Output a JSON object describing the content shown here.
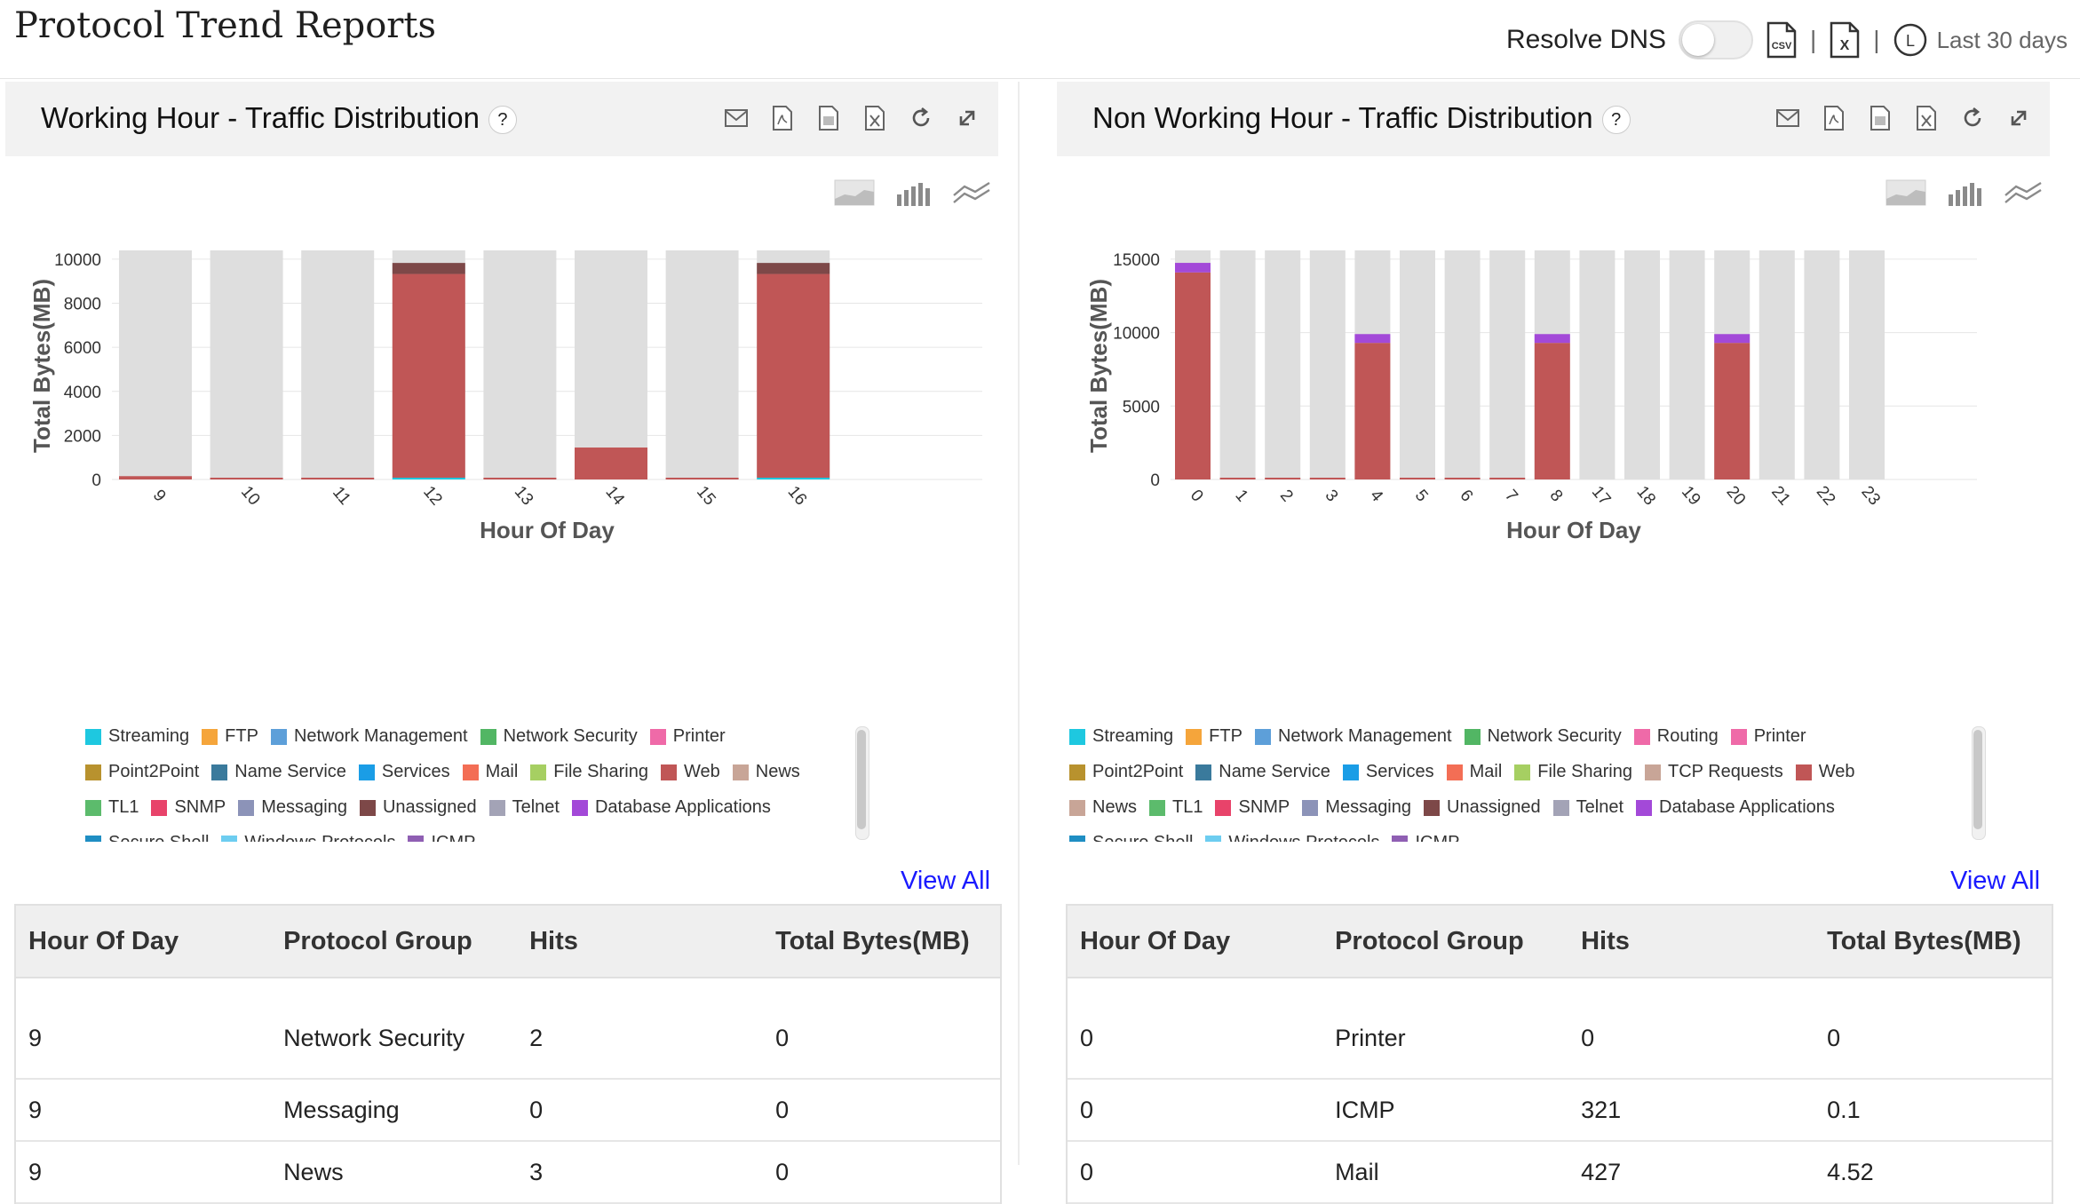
{
  "page": {
    "title": "Protocol Trend Reports",
    "resolve_dns_label": "Resolve DNS",
    "resolve_dns_on": false,
    "csv_icon_text": "CSV",
    "xls_icon_text": "X",
    "separator": "|",
    "period_icon_text": "L",
    "period": "Last 30 days"
  },
  "colors": {
    "Streaming": "#1ec8e0",
    "FTP": "#f5a53b",
    "Network Management": "#5d9fd9",
    "Network Security": "#52b664",
    "Printer": "#ef6aa8",
    "Point2Point": "#b8922e",
    "Name Service": "#3a7a9c",
    "Services": "#1a9de6",
    "Mail": "#f36e55",
    "File Sharing": "#a6cf62",
    "Web": "#c05656",
    "News": "#c8a597",
    "TL1": "#5cbb6c",
    "SNMP": "#e8436a",
    "Messaging": "#8c93b8",
    "Unassigned": "#7d4848",
    "Telnet": "#a3a3b6",
    "Database Applications": "#a349d8",
    "Secure Shell": "#1f8ec3",
    "Windows Protocols": "#6dcdf0",
    "ICMP": "#8f5fb3",
    "Routing": "#ef6aa8",
    "TCP Requests": "#c8a597",
    "background_bar": "#dedede"
  },
  "panels": [
    {
      "title": "Working Hour - Traffic Distribution",
      "help": "?",
      "tool_icons": [
        "mail-icon",
        "pdf-icon",
        "csv-doc-icon",
        "excel-icon",
        "refresh-icon",
        "expand-icon"
      ],
      "chart_type_icons": [
        "area-chart-icon",
        "bar-chart-icon",
        "line-chart-icon"
      ],
      "legend": [
        "Streaming",
        "FTP",
        "Network Management",
        "Network Security",
        "Printer",
        "Point2Point",
        "Name Service",
        "Services",
        "Mail",
        "File Sharing",
        "Web",
        "News",
        "TL1",
        "SNMP",
        "Messaging",
        "Unassigned",
        "Telnet",
        "Database Applications",
        "Secure Shell",
        "Windows Protocols",
        "ICMP"
      ],
      "view_all": "View All",
      "table": {
        "headers": [
          "Hour Of Day",
          "Protocol Group",
          "Hits",
          "Total Bytes(MB)"
        ],
        "rows": [
          [
            "9",
            "Network Security",
            "2",
            "0"
          ],
          [
            "9",
            "Messaging",
            "0",
            "0"
          ],
          [
            "9",
            "News",
            "3",
            "0"
          ]
        ]
      },
      "chart_data": {
        "type": "bar",
        "stacked": true,
        "xlabel": "Hour Of Day",
        "ylabel": "Total Bytes(MB)",
        "ylim": [
          0,
          10400
        ],
        "yticks": [
          0,
          2000,
          4000,
          6000,
          8000,
          10000
        ],
        "categories": [
          "9",
          "10",
          "11",
          "12",
          "13",
          "14",
          "15",
          "16"
        ],
        "grid": true,
        "background_bars": true,
        "series": [
          {
            "name": "Streaming",
            "values": [
              0,
              0,
              0,
              80,
              0,
              0,
              0,
              80
            ]
          },
          {
            "name": "Web",
            "values": [
              150,
              30,
              60,
              9250,
              80,
              1450,
              10,
              9250
            ]
          },
          {
            "name": "Unassigned",
            "values": [
              0,
              0,
              0,
              500,
              0,
              0,
              0,
              500
            ]
          }
        ]
      }
    },
    {
      "title": "Non Working Hour - Traffic Distribution",
      "help": "?",
      "tool_icons": [
        "mail-icon",
        "pdf-icon",
        "csv-doc-icon",
        "excel-icon",
        "refresh-icon",
        "expand-icon"
      ],
      "chart_type_icons": [
        "area-chart-icon",
        "bar-chart-icon",
        "line-chart-icon"
      ],
      "legend": [
        "Streaming",
        "FTP",
        "Network Management",
        "Network Security",
        "Routing",
        "Printer",
        "Point2Point",
        "Name Service",
        "Services",
        "Mail",
        "File Sharing",
        "TCP Requests",
        "Web",
        "News",
        "TL1",
        "SNMP",
        "Messaging",
        "Unassigned",
        "Telnet",
        "Database Applications",
        "Secure Shell",
        "Windows Protocols",
        "ICMP"
      ],
      "view_all": "View All",
      "table": {
        "headers": [
          "Hour Of Day",
          "Protocol Group",
          "Hits",
          "Total Bytes(MB)"
        ],
        "rows": [
          [
            "0",
            "Printer",
            "0",
            "0"
          ],
          [
            "0",
            "ICMP",
            "321",
            "0.1"
          ],
          [
            "0",
            "Mail",
            "427",
            "4.52"
          ]
        ]
      },
      "chart_data": {
        "type": "bar",
        "stacked": true,
        "xlabel": "Hour Of Day",
        "ylabel": "Total Bytes(MB)",
        "ylim": [
          0,
          15600
        ],
        "yticks": [
          0,
          5000,
          10000,
          15000
        ],
        "categories": [
          "0",
          "1",
          "2",
          "3",
          "4",
          "5",
          "6",
          "7",
          "8",
          "17",
          "18",
          "19",
          "20",
          "21",
          "22",
          "23"
        ],
        "grid": true,
        "background_bars": true,
        "series": [
          {
            "name": "Web",
            "values": [
              14100,
              40,
              80,
              30,
              9300,
              100,
              30,
              60,
              9300,
              0,
              0,
              0,
              9300,
              0,
              0,
              0
            ]
          },
          {
            "name": "Database Applications",
            "values": [
              650,
              0,
              0,
              0,
              600,
              0,
              0,
              0,
              600,
              0,
              0,
              0,
              600,
              0,
              0,
              0
            ]
          }
        ]
      }
    }
  ]
}
